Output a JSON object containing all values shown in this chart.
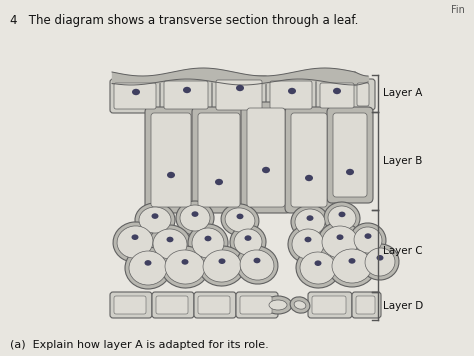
{
  "title": "4   The diagram shows a transverse section through a leaf.",
  "subtitle": "(a)  Explain how layer A is adapted for its role.",
  "bg_color": "#e8e6e0",
  "cell_fill_light": "#d0cfc8",
  "cell_fill_mid": "#b8b7b0",
  "cell_edge": "#606060",
  "nucleus_color": "#404060",
  "title_fontsize": 8.5,
  "label_fontsize": 8,
  "bracket_color": "#555555"
}
